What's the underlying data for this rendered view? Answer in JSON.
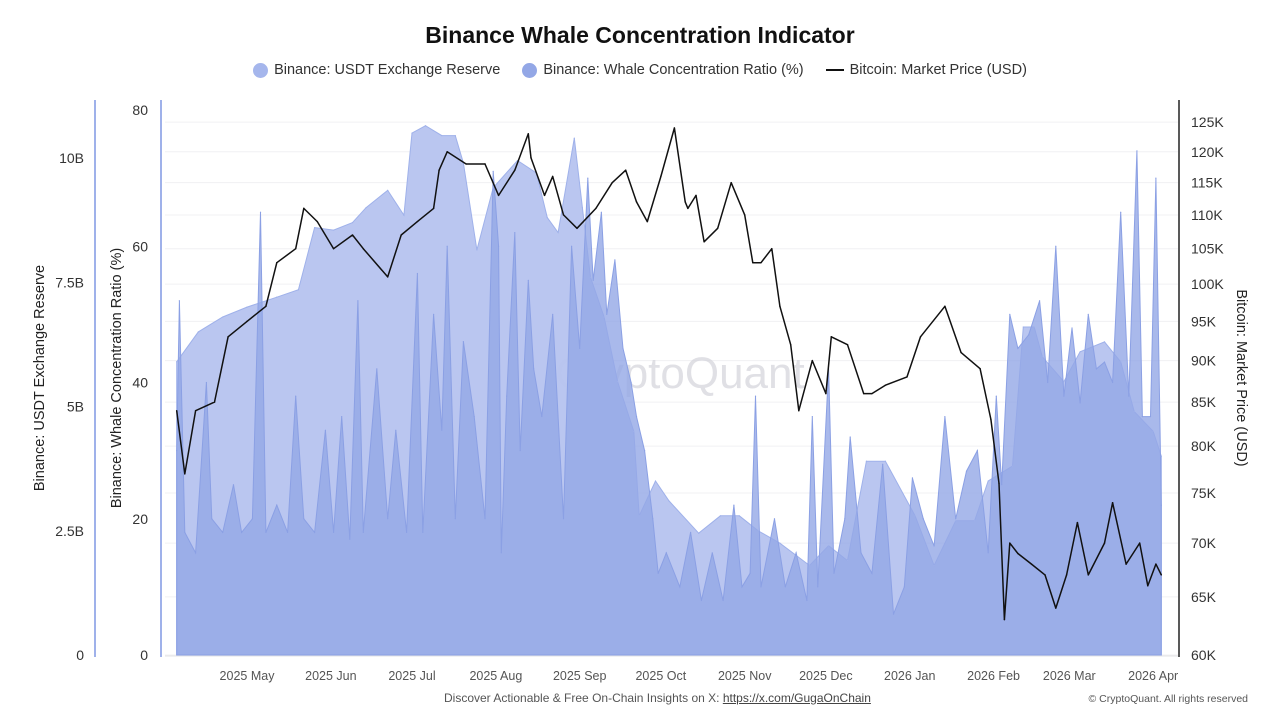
{
  "chart_data": {
    "type": "area",
    "title": "Binance Whale Concentration Indicator",
    "legend_position": "top",
    "grid": true,
    "watermark": "CryptoQuant",
    "x_tick_labels": [
      "2025 May",
      "2025 Jun",
      "2025 Jul",
      "2025 Aug",
      "2025 Sep",
      "2025 Oct",
      "2025 Nov",
      "2025 Dec",
      "2026 Jan",
      "2026 Feb",
      "2026 Mar",
      "2026 Apr"
    ],
    "axes": {
      "left_outer": {
        "label": "Binance: USDT Exchange Reserve",
        "ticks": [
          "0",
          "2.5B",
          "5B",
          "7.5B",
          "10B"
        ],
        "range": [
          0,
          11000000000
        ]
      },
      "left_inner": {
        "label": "Binance: Whale Concentration Ratio (%)",
        "ticks": [
          "0",
          "20",
          "40",
          "60",
          "80"
        ],
        "range": [
          0,
          80
        ]
      },
      "right": {
        "label": "Bitcoin: Market Price (USD)",
        "scale": "log",
        "ticks": [
          "60K",
          "65K",
          "70K",
          "75K",
          "80K",
          "85K",
          "90K",
          "95K",
          "100K",
          "105K",
          "110K",
          "115K",
          "120K",
          "125K"
        ],
        "range": [
          60000,
          125000
        ]
      }
    },
    "series": [
      {
        "name": "Binance: USDT Exchange Reserve",
        "type": "area",
        "axis": "left_outer",
        "color": "#b6c3ef",
        "unit": "B",
        "points": [
          [
            "2025-04-05",
            5.9
          ],
          [
            "2025-04-13",
            6.5
          ],
          [
            "2025-04-22",
            6.8
          ],
          [
            "2025-05-01",
            7.0
          ],
          [
            "2025-05-12",
            7.2
          ],
          [
            "2025-05-20",
            7.35
          ],
          [
            "2025-05-26",
            8.6
          ],
          [
            "2025-06-02",
            8.55
          ],
          [
            "2025-06-09",
            8.7
          ],
          [
            "2025-06-14",
            9.0
          ],
          [
            "2025-06-22",
            9.35
          ],
          [
            "2025-06-28",
            8.85
          ],
          [
            "2025-07-01",
            10.5
          ],
          [
            "2025-07-06",
            10.65
          ],
          [
            "2025-07-12",
            10.45
          ],
          [
            "2025-07-17",
            10.45
          ],
          [
            "2025-07-20",
            9.9
          ],
          [
            "2025-07-25",
            8.15
          ],
          [
            "2025-07-31",
            9.4
          ],
          [
            "2025-08-09",
            9.95
          ],
          [
            "2025-08-16",
            9.7
          ],
          [
            "2025-08-20",
            8.8
          ],
          [
            "2025-08-24",
            8.5
          ],
          [
            "2025-08-30",
            10.4
          ],
          [
            "2025-09-02",
            9.0
          ],
          [
            "2025-09-05",
            7.6
          ],
          [
            "2025-09-10",
            6.8
          ],
          [
            "2025-09-15",
            5.5
          ],
          [
            "2025-09-21",
            4.5
          ],
          [
            "2025-09-23",
            2.8
          ],
          [
            "2025-09-29",
            3.5
          ],
          [
            "2025-10-04",
            3.1
          ],
          [
            "2025-10-15",
            2.45
          ],
          [
            "2025-10-23",
            2.8
          ],
          [
            "2025-10-30",
            2.8
          ],
          [
            "2025-11-06",
            2.5
          ],
          [
            "2025-11-14",
            2.25
          ],
          [
            "2025-11-25",
            1.8
          ],
          [
            "2025-12-02",
            2.2
          ],
          [
            "2025-12-09",
            1.9
          ],
          [
            "2025-12-16",
            3.9
          ],
          [
            "2025-12-23",
            3.9
          ],
          [
            "2026-01-03",
            2.8
          ],
          [
            "2026-01-10",
            1.8
          ],
          [
            "2026-01-18",
            2.7
          ],
          [
            "2026-01-25",
            2.7
          ],
          [
            "2026-01-30",
            3.5
          ],
          [
            "2026-02-08",
            3.8
          ],
          [
            "2026-02-12",
            6.6
          ],
          [
            "2026-02-16",
            6.6
          ],
          [
            "2026-02-19",
            6.0
          ],
          [
            "2026-02-27",
            5.5
          ],
          [
            "2026-03-05",
            6.1
          ],
          [
            "2026-03-14",
            6.3
          ],
          [
            "2026-03-20",
            5.9
          ],
          [
            "2026-03-25",
            4.9
          ],
          [
            "2026-04-01",
            4.5
          ],
          [
            "2026-04-04",
            4.0
          ]
        ]
      },
      {
        "name": "Binance: Whale Concentration Ratio (%)",
        "type": "area",
        "axis": "left_inner",
        "color": "#93a7e6",
        "points": [
          [
            "2025-04-05",
            30
          ],
          [
            "2025-04-06",
            52
          ],
          [
            "2025-04-08",
            18
          ],
          [
            "2025-04-12",
            15
          ],
          [
            "2025-04-16",
            40
          ],
          [
            "2025-04-18",
            20
          ],
          [
            "2025-04-22",
            18
          ],
          [
            "2025-04-26",
            25
          ],
          [
            "2025-04-29",
            18
          ],
          [
            "2025-05-03",
            20
          ],
          [
            "2025-05-06",
            65
          ],
          [
            "2025-05-08",
            18
          ],
          [
            "2025-05-12",
            22
          ],
          [
            "2025-05-16",
            18
          ],
          [
            "2025-05-19",
            38
          ],
          [
            "2025-05-22",
            20
          ],
          [
            "2025-05-26",
            18
          ],
          [
            "2025-05-30",
            33
          ],
          [
            "2025-06-02",
            18
          ],
          [
            "2025-06-05",
            35
          ],
          [
            "2025-06-08",
            17
          ],
          [
            "2025-06-11",
            52
          ],
          [
            "2025-06-13",
            18
          ],
          [
            "2025-06-18",
            42
          ],
          [
            "2025-06-22",
            20
          ],
          [
            "2025-06-25",
            33
          ],
          [
            "2025-06-29",
            18
          ],
          [
            "2025-07-03",
            56
          ],
          [
            "2025-07-05",
            18
          ],
          [
            "2025-07-09",
            50
          ],
          [
            "2025-07-12",
            33
          ],
          [
            "2025-07-14",
            60
          ],
          [
            "2025-07-17",
            20
          ],
          [
            "2025-07-20",
            46
          ],
          [
            "2025-07-24",
            35
          ],
          [
            "2025-07-28",
            20
          ],
          [
            "2025-07-31",
            71
          ],
          [
            "2025-08-02",
            60
          ],
          [
            "2025-08-03",
            15
          ],
          [
            "2025-08-05",
            38
          ],
          [
            "2025-08-08",
            62
          ],
          [
            "2025-08-10",
            30
          ],
          [
            "2025-08-13",
            55
          ],
          [
            "2025-08-15",
            42
          ],
          [
            "2025-08-18",
            35
          ],
          [
            "2025-08-22",
            50
          ],
          [
            "2025-08-26",
            20
          ],
          [
            "2025-08-29",
            60
          ],
          [
            "2025-09-01",
            45
          ],
          [
            "2025-09-04",
            70
          ],
          [
            "2025-09-06",
            55
          ],
          [
            "2025-09-09",
            65
          ],
          [
            "2025-09-11",
            50
          ],
          [
            "2025-09-14",
            58
          ],
          [
            "2025-09-17",
            45
          ],
          [
            "2025-09-20",
            40
          ],
          [
            "2025-09-22",
            35
          ],
          [
            "2025-09-25",
            30
          ],
          [
            "2025-09-28",
            20
          ],
          [
            "2025-09-30",
            12
          ],
          [
            "2025-10-03",
            15
          ],
          [
            "2025-10-08",
            10
          ],
          [
            "2025-10-12",
            18
          ],
          [
            "2025-10-16",
            8
          ],
          [
            "2025-10-20",
            15
          ],
          [
            "2025-10-24",
            8
          ],
          [
            "2025-10-28",
            22
          ],
          [
            "2025-10-31",
            10
          ],
          [
            "2025-11-03",
            12
          ],
          [
            "2025-11-05",
            38
          ],
          [
            "2025-11-07",
            10
          ],
          [
            "2025-11-12",
            20
          ],
          [
            "2025-11-16",
            10
          ],
          [
            "2025-11-20",
            15
          ],
          [
            "2025-11-24",
            8
          ],
          [
            "2025-11-26",
            35
          ],
          [
            "2025-11-28",
            10
          ],
          [
            "2025-12-02",
            42
          ],
          [
            "2025-12-04",
            12
          ],
          [
            "2025-12-08",
            20
          ],
          [
            "2025-12-10",
            32
          ],
          [
            "2025-12-14",
            15
          ],
          [
            "2025-12-18",
            12
          ],
          [
            "2025-12-22",
            28
          ],
          [
            "2025-12-26",
            6
          ],
          [
            "2025-12-30",
            10
          ],
          [
            "2026-01-02",
            26
          ],
          [
            "2026-01-06",
            20
          ],
          [
            "2026-01-10",
            16
          ],
          [
            "2026-01-14",
            35
          ],
          [
            "2026-01-18",
            20
          ],
          [
            "2026-01-22",
            27
          ],
          [
            "2026-01-26",
            30
          ],
          [
            "2026-01-30",
            15
          ],
          [
            "2026-02-02",
            38
          ],
          [
            "2026-02-04",
            25
          ],
          [
            "2026-02-07",
            50
          ],
          [
            "2026-02-10",
            45
          ],
          [
            "2026-02-14",
            47
          ],
          [
            "2026-02-18",
            52
          ],
          [
            "2026-02-21",
            40
          ],
          [
            "2026-02-24",
            60
          ],
          [
            "2026-02-27",
            38
          ],
          [
            "2026-03-02",
            48
          ],
          [
            "2026-03-05",
            37
          ],
          [
            "2026-03-08",
            50
          ],
          [
            "2026-03-11",
            42
          ],
          [
            "2026-03-14",
            43
          ],
          [
            "2026-03-17",
            40
          ],
          [
            "2026-03-20",
            65
          ],
          [
            "2026-03-23",
            38
          ],
          [
            "2026-03-26",
            74
          ],
          [
            "2026-03-28",
            35
          ],
          [
            "2026-03-31",
            35
          ],
          [
            "2026-04-02",
            70
          ],
          [
            "2026-04-04",
            22
          ]
        ]
      },
      {
        "name": "Bitcoin: Market Price (USD)",
        "type": "line",
        "axis": "right",
        "color": "#111111",
        "points": [
          [
            "2025-04-05",
            84000
          ],
          [
            "2025-04-08",
            77000
          ],
          [
            "2025-04-12",
            84000
          ],
          [
            "2025-04-19",
            85000
          ],
          [
            "2025-04-24",
            93000
          ],
          [
            "2025-05-01",
            95000
          ],
          [
            "2025-05-08",
            97000
          ],
          [
            "2025-05-12",
            103000
          ],
          [
            "2025-05-19",
            105000
          ],
          [
            "2025-05-22",
            111000
          ],
          [
            "2025-05-27",
            109000
          ],
          [
            "2025-06-02",
            105000
          ],
          [
            "2025-06-09",
            107000
          ],
          [
            "2025-06-13",
            105000
          ],
          [
            "2025-06-22",
            101000
          ],
          [
            "2025-06-27",
            107000
          ],
          [
            "2025-07-03",
            109000
          ],
          [
            "2025-07-09",
            111000
          ],
          [
            "2025-07-11",
            117000
          ],
          [
            "2025-07-14",
            120000
          ],
          [
            "2025-07-21",
            118000
          ],
          [
            "2025-07-28",
            118000
          ],
          [
            "2025-08-02",
            113000
          ],
          [
            "2025-08-08",
            117000
          ],
          [
            "2025-08-13",
            123000
          ],
          [
            "2025-08-14",
            119000
          ],
          [
            "2025-08-19",
            113000
          ],
          [
            "2025-08-22",
            116000
          ],
          [
            "2025-08-26",
            110000
          ],
          [
            "2025-08-31",
            108000
          ],
          [
            "2025-09-07",
            111000
          ],
          [
            "2025-09-13",
            115000
          ],
          [
            "2025-09-18",
            117000
          ],
          [
            "2025-09-22",
            112000
          ],
          [
            "2025-09-26",
            109000
          ],
          [
            "2025-10-01",
            116000
          ],
          [
            "2025-10-06",
            124000
          ],
          [
            "2025-10-10",
            112000
          ],
          [
            "2025-10-11",
            111000
          ],
          [
            "2025-10-14",
            113000
          ],
          [
            "2025-10-17",
            106000
          ],
          [
            "2025-10-22",
            108000
          ],
          [
            "2025-10-27",
            115000
          ],
          [
            "2025-11-01",
            110000
          ],
          [
            "2025-11-04",
            103000
          ],
          [
            "2025-11-07",
            103000
          ],
          [
            "2025-11-11",
            105000
          ],
          [
            "2025-11-14",
            97000
          ],
          [
            "2025-11-18",
            92000
          ],
          [
            "2025-11-21",
            84000
          ],
          [
            "2025-11-26",
            90000
          ],
          [
            "2025-12-01",
            86000
          ],
          [
            "2025-12-03",
            93000
          ],
          [
            "2025-12-09",
            92000
          ],
          [
            "2025-12-15",
            86000
          ],
          [
            "2025-12-18",
            86000
          ],
          [
            "2025-12-23",
            87000
          ],
          [
            "2025-12-31",
            88000
          ],
          [
            "2026-01-05",
            93000
          ],
          [
            "2026-01-14",
            97000
          ],
          [
            "2026-01-20",
            91000
          ],
          [
            "2026-01-27",
            89000
          ],
          [
            "2026-01-31",
            83000
          ],
          [
            "2026-02-03",
            76000
          ],
          [
            "2026-02-05",
            63000
          ],
          [
            "2026-02-07",
            70000
          ],
          [
            "2026-02-10",
            69000
          ],
          [
            "2026-02-15",
            68000
          ],
          [
            "2026-02-20",
            67000
          ],
          [
            "2026-02-24",
            64000
          ],
          [
            "2026-02-28",
            67000
          ],
          [
            "2026-03-04",
            72000
          ],
          [
            "2026-03-08",
            67000
          ],
          [
            "2026-03-14",
            70000
          ],
          [
            "2026-03-17",
            74000
          ],
          [
            "2026-03-22",
            68000
          ],
          [
            "2026-03-27",
            70000
          ],
          [
            "2026-03-30",
            66000
          ],
          [
            "2026-04-02",
            68000
          ],
          [
            "2026-04-04",
            67000
          ]
        ]
      }
    ]
  },
  "footer": {
    "text": "Discover Actionable & Free On-Chain Insights on X: ",
    "link": "https://x.com/GugaOnChain",
    "copyright": "© CryptoQuant. All rights reserved"
  }
}
